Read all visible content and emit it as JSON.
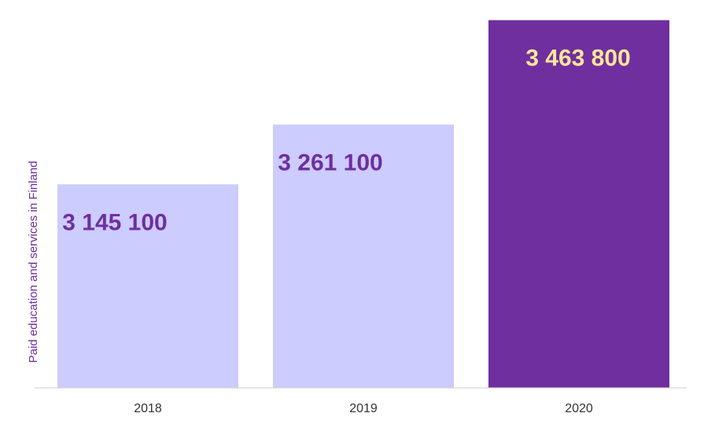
{
  "chart_data": {
    "type": "bar",
    "categories": [
      "2018",
      "2019",
      "2020"
    ],
    "values": [
      3145100,
      3261100,
      3463800
    ],
    "data_labels": [
      "3 145 100",
      "3 261 100",
      "3 463 800"
    ],
    "title": "",
    "xlabel": "",
    "ylabel": "Paid education and services in Finland",
    "ylim": [
      2750000,
      3480000
    ],
    "grid": false,
    "legend": "none",
    "colors": {
      "bar": "#ccccff",
      "bar_highlight": "#6f2f9f",
      "label": "#6f2f9f",
      "label_highlight": "#ffe699",
      "ylabel": "#6f2f9f",
      "axis": "#cccccc"
    },
    "highlight_index": 2
  }
}
